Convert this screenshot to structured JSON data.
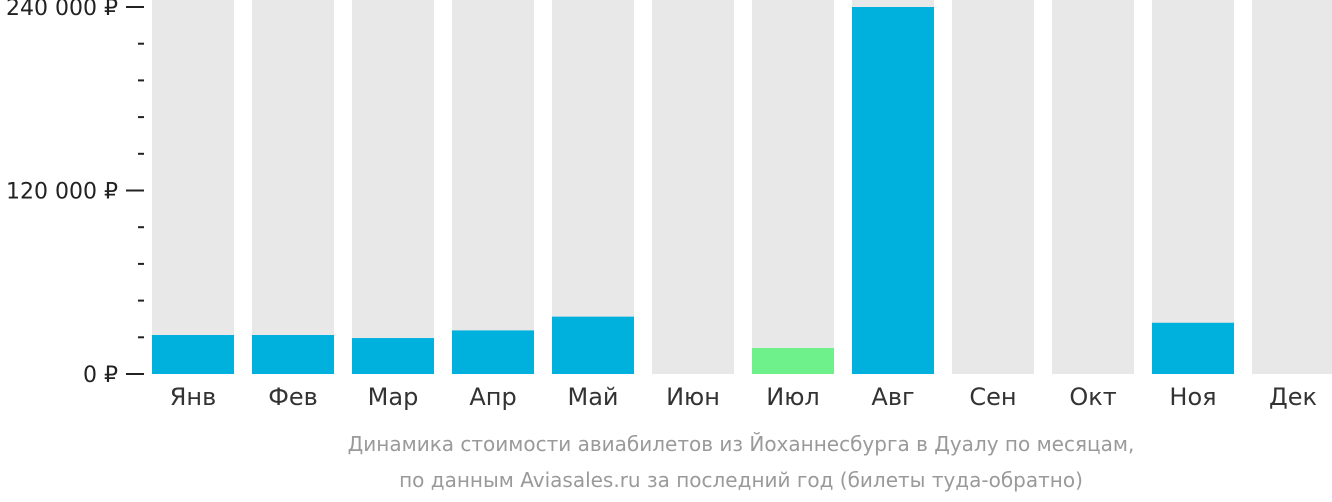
{
  "chart_data": {
    "type": "bar",
    "categories": [
      "Янв",
      "Фев",
      "Мар",
      "Апр",
      "Май",
      "Июн",
      "Июл",
      "Авг",
      "Сен",
      "Окт",
      "Ноя",
      "Дек"
    ],
    "values": [
      25500,
      25500,
      23500,
      28500,
      37500,
      null,
      17000,
      240000,
      null,
      null,
      33500,
      null
    ],
    "highlight_index": 6,
    "ylim": [
      0,
      240000
    ],
    "y_ticks": [
      {
        "value": 0,
        "label": "0 ₽"
      },
      {
        "value": 120000,
        "label": "120 000 ₽"
      },
      {
        "value": 240000,
        "label": "240 000 ₽"
      }
    ],
    "y_minor_step": 24000,
    "caption_lines": [
      "Динамика стоимости авиабилетов из Йоханнесбурга в Дуалу по месяцам,",
      "по данным Aviasales.ru за последний год (билеты туда-обратно)"
    ],
    "colors": {
      "bar": "#00b1dd",
      "highlight": "#6ef08a",
      "background_bar": "#e8e8e8",
      "axis": "#222222",
      "caption": "#9a9a9a"
    }
  }
}
